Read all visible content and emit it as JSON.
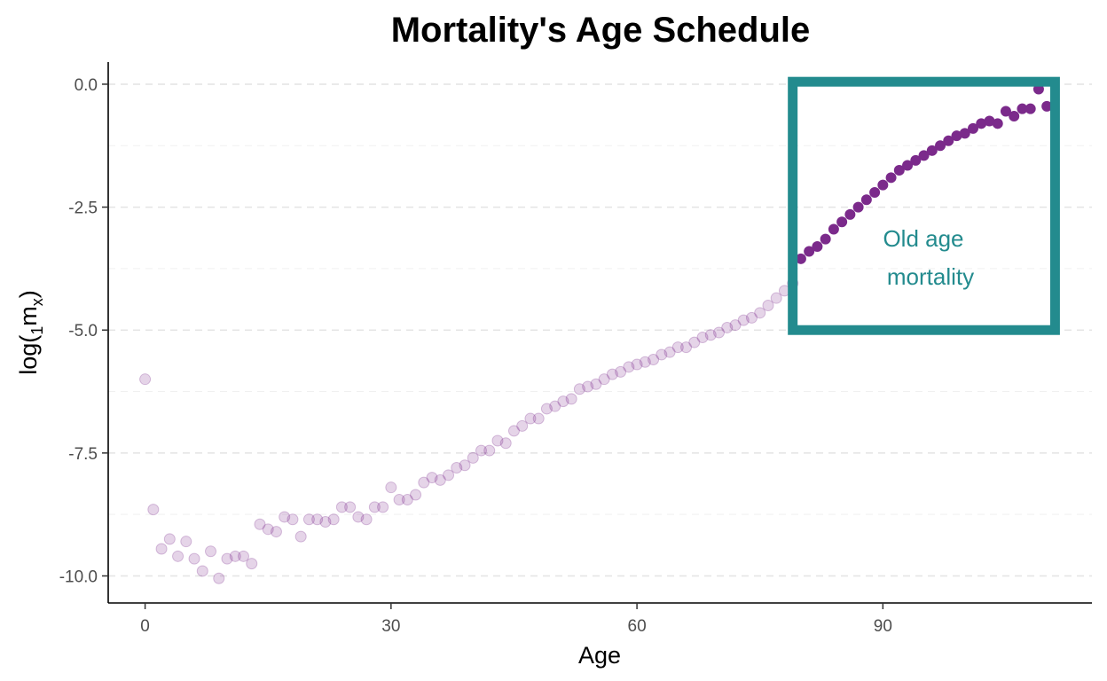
{
  "chart_data": {
    "type": "scatter",
    "title": "Mortality's Age Schedule",
    "xlabel": "Age",
    "ylabel": {
      "prefix": "log(",
      "sub1": "1",
      "main": "m",
      "sub2": "x",
      "suffix": ")"
    },
    "xlim": [
      -4.5,
      115.5
    ],
    "ylim": [
      -10.55,
      0.45
    ],
    "xticks": [
      0,
      30,
      60,
      90
    ],
    "xtick_labels": [
      "0",
      "30",
      "60",
      "90"
    ],
    "yticks": [
      0,
      -2.5,
      -5,
      -7.5,
      -10
    ],
    "ytick_labels": [
      "0.0",
      "-2.5",
      "-5.0",
      "-7.5",
      "-10.0"
    ],
    "grid": {
      "major_y": true,
      "minor_y": true,
      "style": "dashed"
    },
    "colors": {
      "point": "#7b2a8b",
      "highlight_box": "#238b8e",
      "annotation_text": "#238b8e"
    },
    "highlight": {
      "label_lines": [
        "Old age",
        "mortality"
      ],
      "x_range": [
        79,
        111
      ],
      "y_range": [
        -5.0,
        0.05
      ]
    },
    "series": [
      {
        "style": "faded",
        "x": [
          0,
          1,
          2,
          3,
          4,
          5,
          6,
          7,
          8,
          9,
          10,
          11,
          12,
          13,
          14,
          15,
          16,
          17,
          18,
          19,
          20,
          21,
          22,
          23,
          24,
          25,
          26,
          27,
          28,
          29,
          30,
          31,
          32,
          33,
          34,
          35,
          36,
          37,
          38,
          39,
          40,
          41,
          42,
          43,
          44,
          45,
          46,
          47,
          48,
          49,
          50,
          51,
          52,
          53,
          54,
          55,
          56,
          57,
          58,
          59,
          60,
          61,
          62,
          63,
          64,
          65,
          66,
          67,
          68,
          69,
          70,
          71,
          72,
          73,
          74,
          75,
          76,
          77,
          78,
          79
        ],
        "y": [
          -6.0,
          -8.65,
          -9.45,
          -9.25,
          -9.6,
          -9.3,
          -9.65,
          -9.9,
          -9.5,
          -10.05,
          -9.65,
          -9.6,
          -9.6,
          -9.75,
          -8.95,
          -9.05,
          -9.1,
          -8.8,
          -8.85,
          -9.2,
          -8.85,
          -8.85,
          -8.9,
          -8.85,
          -8.6,
          -8.6,
          -8.8,
          -8.85,
          -8.6,
          -8.6,
          -8.2,
          -8.45,
          -8.45,
          -8.35,
          -8.1,
          -8.0,
          -8.05,
          -7.95,
          -7.8,
          -7.75,
          -7.6,
          -7.45,
          -7.45,
          -7.25,
          -7.3,
          -7.05,
          -6.95,
          -6.8,
          -6.8,
          -6.6,
          -6.55,
          -6.45,
          -6.4,
          -6.2,
          -6.15,
          -6.1,
          -6.0,
          -5.9,
          -5.85,
          -5.75,
          -5.7,
          -5.65,
          -5.6,
          -5.5,
          -5.45,
          -5.35,
          -5.35,
          -5.25,
          -5.15,
          -5.1,
          -5.05,
          -4.95,
          -4.9,
          -4.8,
          -4.75,
          -4.65,
          -4.5,
          -4.35,
          -4.2,
          -4.05
        ]
      },
      {
        "style": "highlighted",
        "x": [
          80,
          81,
          82,
          83,
          84,
          85,
          86,
          87,
          88,
          89,
          90,
          91,
          92,
          93,
          94,
          95,
          96,
          97,
          98,
          99,
          100,
          101,
          102,
          103,
          104,
          105,
          106,
          107,
          108,
          109,
          110
        ],
        "y": [
          -3.55,
          -3.4,
          -3.3,
          -3.15,
          -2.95,
          -2.8,
          -2.65,
          -2.5,
          -2.35,
          -2.2,
          -2.05,
          -1.9,
          -1.75,
          -1.65,
          -1.55,
          -1.45,
          -1.35,
          -1.25,
          -1.15,
          -1.05,
          -1.0,
          -0.9,
          -0.8,
          -0.75,
          -0.8,
          -0.55,
          -0.65,
          -0.5,
          -0.5,
          -0.1,
          -0.45
        ]
      }
    ]
  }
}
